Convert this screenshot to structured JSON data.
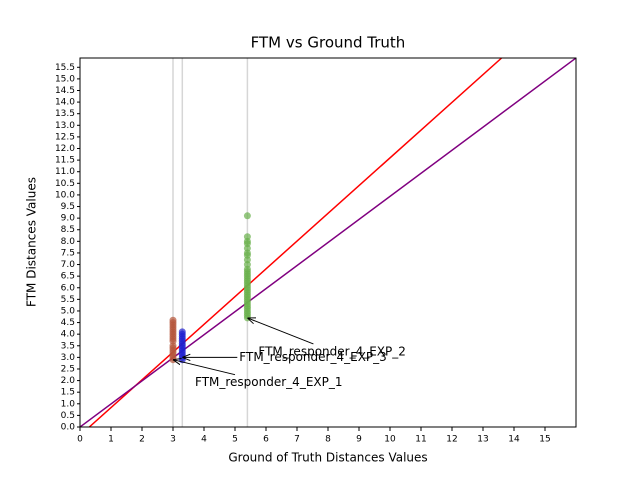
{
  "chart_data": {
    "type": "scatter",
    "title": "FTM vs Ground Truth",
    "xlabel": "Ground of Truth Distances Values",
    "ylabel": "FTM Distances Values",
    "xlim": [
      0,
      16
    ],
    "ylim": [
      0,
      15.9
    ],
    "xticks": [
      0,
      1,
      2,
      3,
      4,
      5,
      6,
      7,
      8,
      9,
      10,
      11,
      12,
      13,
      14,
      15
    ],
    "yticks": [
      {
        "value": 0,
        "label": "0.0"
      },
      {
        "value": 0.5,
        "label": "0.5"
      },
      {
        "value": 1,
        "label": "1.0"
      },
      {
        "value": 1.5,
        "label": "1.5"
      },
      {
        "value": 2,
        "label": "2.0"
      },
      {
        "value": 2.5,
        "label": "2.5"
      },
      {
        "value": 3,
        "label": "3.0"
      },
      {
        "value": 3.5,
        "label": "3.5"
      },
      {
        "value": 4,
        "label": "4.0"
      },
      {
        "value": 4.5,
        "label": "4.5"
      },
      {
        "value": 5,
        "label": "5.0"
      },
      {
        "value": 5.5,
        "label": "5.5"
      },
      {
        "value": 6,
        "label": "6.0"
      },
      {
        "value": 6.5,
        "label": "6.5"
      },
      {
        "value": 7,
        "label": "7.0"
      },
      {
        "value": 7.5,
        "label": "7.5"
      },
      {
        "value": 8,
        "label": "8.0"
      },
      {
        "value": 8.5,
        "label": "8.5"
      },
      {
        "value": 9,
        "label": "9.0"
      },
      {
        "value": 9.5,
        "label": "9.5"
      },
      {
        "value": 10,
        "label": "10.0"
      },
      {
        "value": 10.5,
        "label": "10.5"
      },
      {
        "value": 11,
        "label": "11.0"
      },
      {
        "value": 11.5,
        "label": "11.5"
      },
      {
        "value": 12,
        "label": "12.0"
      },
      {
        "value": 12.5,
        "label": "12.5"
      },
      {
        "value": 13,
        "label": "13.0"
      },
      {
        "value": 13.5,
        "label": "13.5"
      },
      {
        "value": 14,
        "label": "14.0"
      },
      {
        "value": 14.5,
        "label": "14.5"
      },
      {
        "value": 15,
        "label": "15.0"
      },
      {
        "value": 15.5,
        "label": "15.5"
      }
    ],
    "vlines": [
      3.0,
      3.3,
      5.4
    ],
    "lines": [
      {
        "color": "#ff0000",
        "x": [
          0.3,
          13.6
        ],
        "values": [
          0,
          15.9
        ]
      },
      {
        "color": "#800080",
        "x": [
          0,
          16
        ],
        "values": [
          0,
          15.9
        ]
      }
    ],
    "series": [
      {
        "color": "#6ab04c",
        "x": 5.4,
        "values": [
          4.7,
          4.8,
          4.9,
          5.0,
          5.1,
          5.2,
          5.3,
          5.4,
          5.5,
          5.6,
          5.7,
          5.8,
          5.9,
          6.0,
          6.1,
          6.2,
          6.3,
          6.4,
          6.5,
          6.6,
          6.7,
          6.8,
          7.0,
          7.2,
          7.4,
          7.5,
          7.7,
          7.9,
          8.0,
          8.2,
          9.1
        ]
      },
      {
        "color": "#b5553a",
        "x": 3.0,
        "values": [
          2.9,
          3.0,
          3.1,
          3.2,
          3.3,
          3.4,
          3.5,
          3.7,
          3.8,
          3.9,
          4.0,
          4.1,
          4.2,
          4.3,
          4.4,
          4.5,
          4.6
        ]
      },
      {
        "color": "#2020d0",
        "x": 3.3,
        "values": [
          2.9,
          3.0,
          3.1,
          3.2,
          3.3,
          3.4,
          3.5,
          3.6,
          3.7,
          3.8,
          3.9,
          4.0,
          4.1
        ]
      }
    ],
    "annotations": [
      {
        "text": "FTM_responder_4_EXP_2",
        "x": 5.4,
        "y": 4.7
      },
      {
        "text": "FTM_responder_4_EXP_3",
        "x": 3.3,
        "y": 3.0
      },
      {
        "text": "FTM_responder_4_EXP_1",
        "x": 3.0,
        "y": 2.9
      }
    ]
  }
}
